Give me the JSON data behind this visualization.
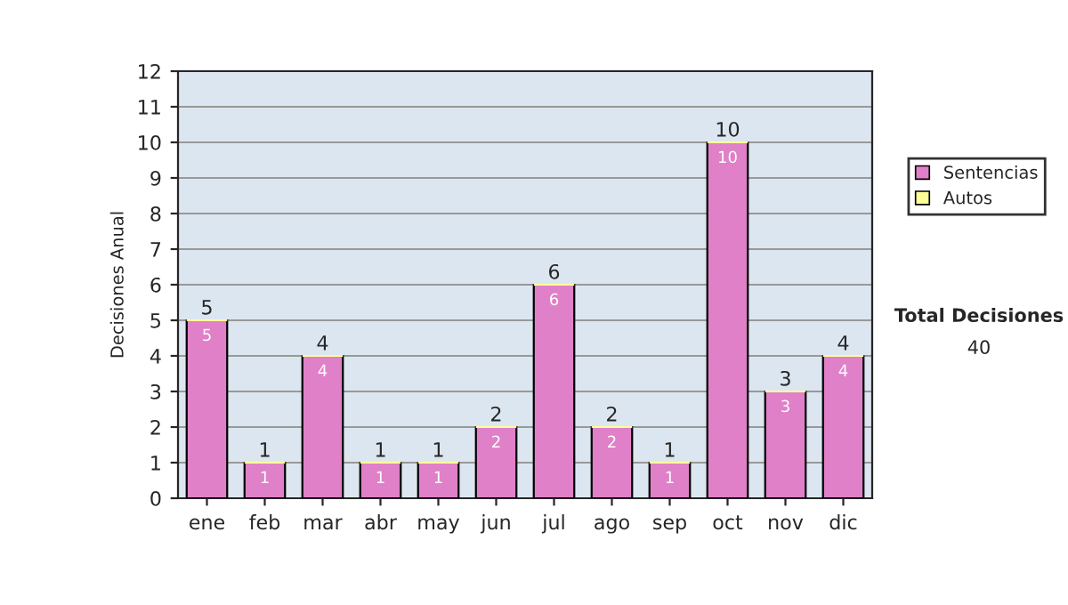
{
  "chart_data": {
    "type": "bar",
    "stacked": true,
    "ylabel": "Decisiones Anual",
    "categories": [
      "ene",
      "feb",
      "mar",
      "abr",
      "may",
      "jun",
      "jul",
      "ago",
      "sep",
      "oct",
      "nov",
      "dic"
    ],
    "series": [
      {
        "name": "Sentencias",
        "color": "#e080c8",
        "values": [
          5,
          1,
          4,
          1,
          1,
          2,
          6,
          2,
          1,
          10,
          3,
          4
        ],
        "value_labels": [
          "5",
          "1",
          "4",
          "1",
          "1",
          "2",
          "6",
          "2",
          "1",
          "10",
          "3",
          "4"
        ]
      },
      {
        "name": "Autos",
        "color": "#ffff99",
        "values": [
          0,
          0,
          0,
          0,
          0,
          0,
          0,
          0,
          0,
          0,
          0,
          0
        ],
        "value_labels": [
          null,
          null,
          null,
          null,
          null,
          null,
          null,
          null,
          null,
          null,
          null,
          null
        ]
      }
    ],
    "totals": [
      "5",
      "1",
      "4",
      "1",
      "1",
      "2",
      "6",
      "2",
      "1",
      "10",
      "3",
      "4"
    ],
    "ylim": [
      0,
      12
    ],
    "yticks": [
      0,
      1,
      2,
      3,
      4,
      5,
      6,
      7,
      8,
      9,
      10,
      11,
      12
    ],
    "grid": "y",
    "legend": "right",
    "annotations": [
      "Total Decisiones",
      "40"
    ]
  }
}
